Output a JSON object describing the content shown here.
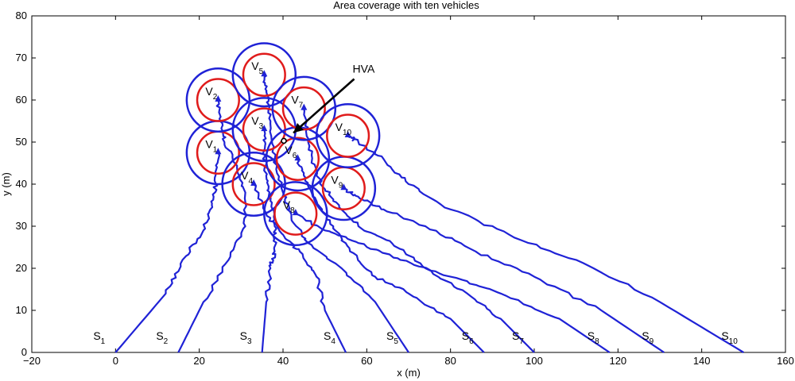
{
  "chart_data": {
    "type": "line",
    "title": "Area coverage with ten vehicles",
    "xlabel": "x (m)",
    "ylabel": "y (m)",
    "xlim": [
      -20,
      160
    ],
    "ylim": [
      0,
      80
    ],
    "xticks": [
      -20,
      0,
      20,
      40,
      60,
      80,
      100,
      120,
      140,
      160
    ],
    "yticks": [
      0,
      10,
      20,
      30,
      40,
      50,
      60,
      70,
      80
    ],
    "grid": false,
    "hva": {
      "label": "HVA",
      "point": [
        40.2,
        50.3
      ],
      "text_at": [
        57,
        65
      ]
    },
    "vehicles": [
      {
        "name": "V",
        "sub": "1",
        "center": [
          24.5,
          47.5
        ],
        "inner_r": 5,
        "outer_r": 7.5,
        "start": {
          "name": "S",
          "sub": "1",
          "x": 0
        },
        "path": [
          [
            0,
            0
          ],
          [
            12,
            14
          ],
          [
            16,
            22
          ],
          [
            21,
            29
          ],
          [
            23,
            35
          ],
          [
            24,
            40
          ],
          [
            24.5,
            47.5
          ]
        ]
      },
      {
        "name": "V",
        "sub": "2",
        "center": [
          24.5,
          60
        ],
        "inner_r": 5,
        "outer_r": 7.5,
        "start": {
          "name": "S",
          "sub": "2",
          "x": 15
        },
        "path": [
          [
            15,
            0
          ],
          [
            21,
            12
          ],
          [
            27,
            22
          ],
          [
            31,
            30
          ],
          [
            31,
            38
          ],
          [
            29,
            44
          ],
          [
            26,
            50
          ],
          [
            25,
            55
          ],
          [
            24.5,
            60
          ]
        ]
      },
      {
        "name": "V",
        "sub": "3",
        "center": [
          35.5,
          53
        ],
        "inner_r": 5,
        "outer_r": 7.5,
        "start": {
          "name": "S",
          "sub": "3",
          "x": 35
        },
        "path": [
          [
            35,
            0
          ],
          [
            36,
            12
          ],
          [
            37,
            20
          ],
          [
            38,
            24
          ],
          [
            38,
            30
          ],
          [
            37,
            36
          ],
          [
            36,
            42
          ],
          [
            35.5,
            48
          ],
          [
            35.5,
            53
          ]
        ]
      },
      {
        "name": "V",
        "sub": "4",
        "center": [
          33,
          40
        ],
        "inner_r": 5,
        "outer_r": 7.5,
        "start": {
          "name": "S",
          "sub": "4",
          "x": 55
        },
        "path": [
          [
            55,
            0
          ],
          [
            50,
            10
          ],
          [
            48,
            18
          ],
          [
            44,
            24
          ],
          [
            40,
            28
          ],
          [
            36,
            33
          ],
          [
            33,
            40
          ]
        ]
      },
      {
        "name": "V",
        "sub": "5",
        "center": [
          35.5,
          66
        ],
        "inner_r": 5,
        "outer_r": 7.5,
        "start": {
          "name": "S",
          "sub": "5",
          "x": 70
        },
        "path": [
          [
            70,
            0
          ],
          [
            62,
            12
          ],
          [
            54,
            20
          ],
          [
            46,
            26
          ],
          [
            42,
            32
          ],
          [
            40,
            38
          ],
          [
            38,
            46
          ],
          [
            37,
            55
          ],
          [
            36,
            62
          ],
          [
            35.5,
            66
          ]
        ]
      },
      {
        "name": "V",
        "sub": "6",
        "center": [
          43.5,
          46
        ],
        "inner_r": 5,
        "outer_r": 7.5,
        "start": {
          "name": "S",
          "sub": "6",
          "x": 88
        },
        "path": [
          [
            88,
            0
          ],
          [
            80,
            8
          ],
          [
            70,
            14
          ],
          [
            62,
            18
          ],
          [
            56,
            24
          ],
          [
            52,
            30
          ],
          [
            48,
            36
          ],
          [
            45,
            42
          ],
          [
            43.5,
            46
          ]
        ]
      },
      {
        "name": "V",
        "sub": "7",
        "center": [
          45,
          58
        ],
        "inner_r": 5,
        "outer_r": 7.5,
        "start": {
          "name": "S",
          "sub": "7",
          "x": 100
        },
        "path": [
          [
            100,
            0
          ],
          [
            92,
            8
          ],
          [
            84,
            14
          ],
          [
            74,
            20
          ],
          [
            66,
            26
          ],
          [
            58,
            30
          ],
          [
            52,
            36
          ],
          [
            48,
            42
          ],
          [
            46,
            50
          ],
          [
            45,
            58
          ]
        ]
      },
      {
        "name": "V",
        "sub": "8",
        "center": [
          43,
          33
        ],
        "inner_r": 5,
        "outer_r": 7.5,
        "start": {
          "name": "S",
          "sub": "8",
          "x": 118
        },
        "path": [
          [
            118,
            0
          ],
          [
            106,
            8
          ],
          [
            92,
            14
          ],
          [
            80,
            18
          ],
          [
            68,
            22
          ],
          [
            58,
            26
          ],
          [
            50,
            29
          ],
          [
            43,
            33
          ]
        ]
      },
      {
        "name": "V",
        "sub": "9",
        "center": [
          54.5,
          39
        ],
        "inner_r": 5,
        "outer_r": 7.5,
        "start": {
          "name": "S",
          "sub": "9",
          "x": 131
        },
        "path": [
          [
            131,
            0
          ],
          [
            116,
            10
          ],
          [
            100,
            18
          ],
          [
            86,
            24
          ],
          [
            74,
            30
          ],
          [
            64,
            34
          ],
          [
            58,
            37
          ],
          [
            54.5,
            39
          ]
        ]
      },
      {
        "name": "V",
        "sub": "10",
        "center": [
          55.5,
          51.5
        ],
        "inner_r": 5,
        "outer_r": 7.5,
        "start": {
          "name": "S",
          "sub": "10",
          "x": 150
        },
        "path": [
          [
            150,
            0
          ],
          [
            130,
            12
          ],
          [
            110,
            22
          ],
          [
            94,
            28
          ],
          [
            80,
            34
          ],
          [
            70,
            40
          ],
          [
            64,
            46
          ],
          [
            58,
            50
          ],
          [
            55.5,
            51.5
          ]
        ]
      }
    ],
    "colors": {
      "path": "#1f22d6",
      "inner": "#e01b1b",
      "outer": "#1f22d6",
      "arrow": "#000000"
    }
  }
}
